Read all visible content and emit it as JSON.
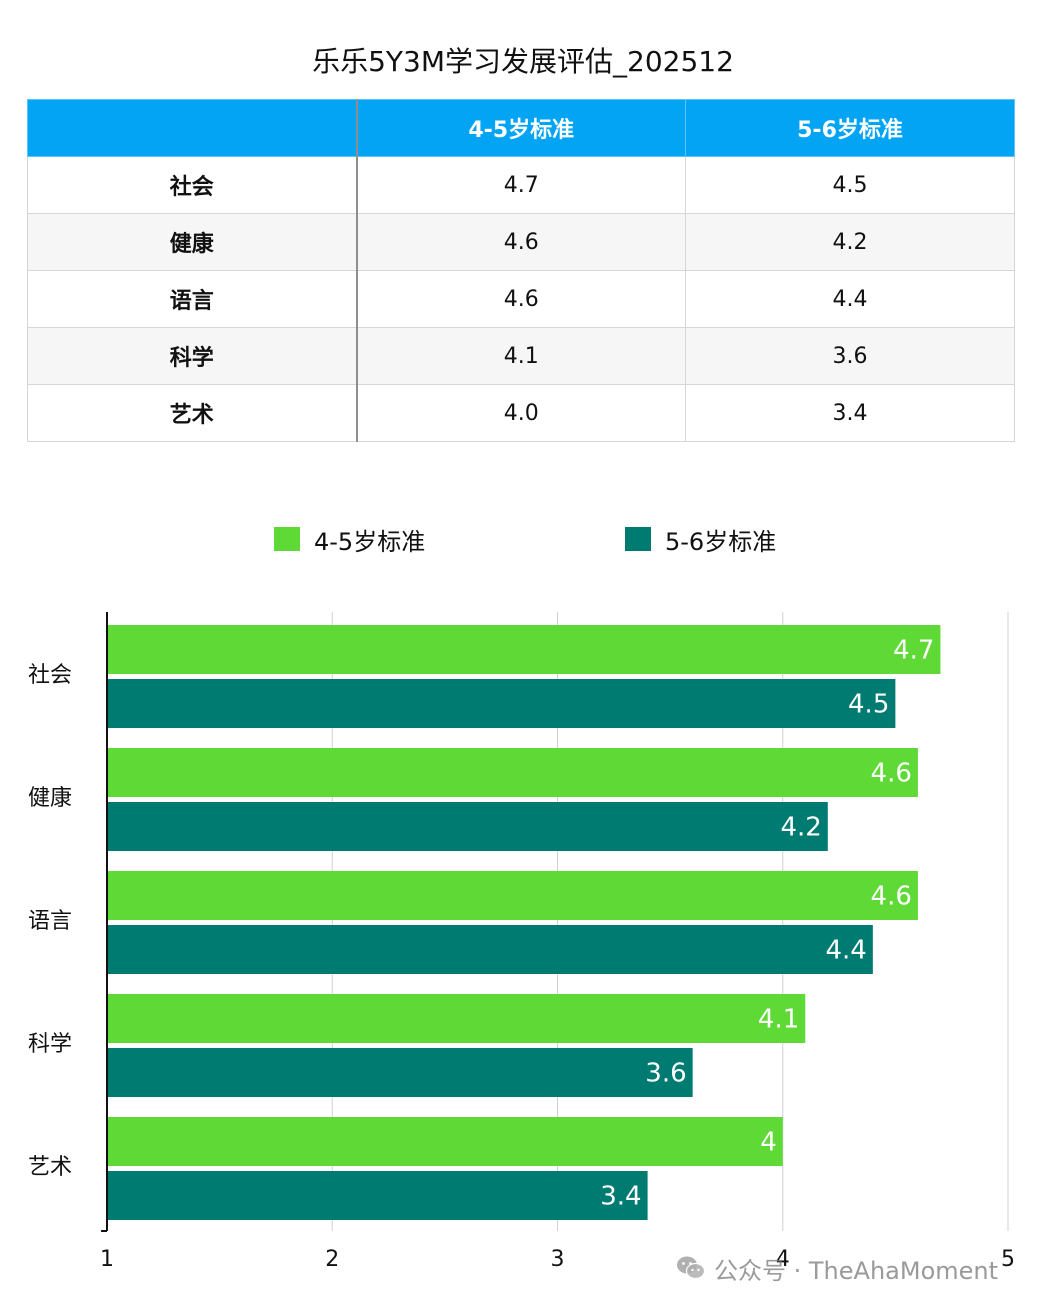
{
  "title": "乐乐5Y3M学习发展评估_202512",
  "table": {
    "headers": [
      "",
      "4-5岁标准",
      "5-6岁标准"
    ],
    "rows": [
      {
        "category": "社会",
        "a": "4.7",
        "b": "4.5"
      },
      {
        "category": "健康",
        "a": "4.6",
        "b": "4.2"
      },
      {
        "category": "语言",
        "a": "4.6",
        "b": "4.4"
      },
      {
        "category": "科学",
        "a": "4.1",
        "b": "3.6"
      },
      {
        "category": "艺术",
        "a": "4.0",
        "b": "3.4"
      }
    ]
  },
  "colors": {
    "header_bg": "#03a4f4",
    "series_a": "#5fd936",
    "series_b": "#007b72"
  },
  "chart_data": {
    "type": "bar",
    "orientation": "horizontal",
    "categories": [
      "社会",
      "健康",
      "语言",
      "科学",
      "艺术"
    ],
    "series": [
      {
        "name": "4-5岁标准",
        "values": [
          4.7,
          4.6,
          4.6,
          4.1,
          4.0
        ],
        "labels": [
          "4.7",
          "4.6",
          "4.6",
          "4.1",
          "4"
        ]
      },
      {
        "name": "5-6岁标准",
        "values": [
          4.5,
          4.2,
          4.4,
          3.6,
          3.4
        ],
        "labels": [
          "4.5",
          "4.2",
          "4.4",
          "3.6",
          "3.4"
        ]
      }
    ],
    "xlim": [
      1,
      5
    ],
    "xticks": [
      "1",
      "2",
      "3",
      "4",
      "5"
    ],
    "grid": true,
    "legend_position": "top"
  },
  "watermark": {
    "text": "公众号 · TheAhaMoment",
    "icon": "wechat-icon"
  }
}
